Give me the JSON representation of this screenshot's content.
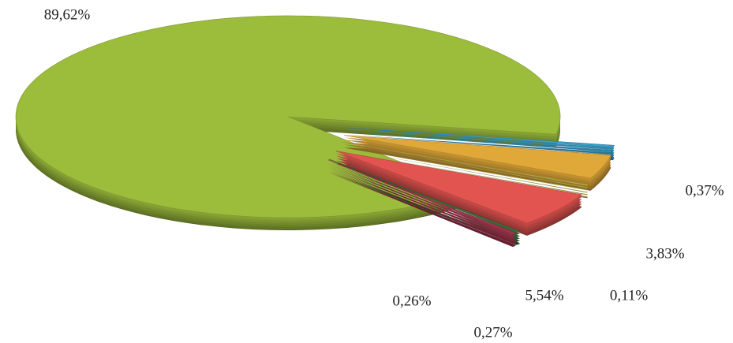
{
  "chart_data": {
    "type": "pie",
    "values": [
      89.62,
      0.37,
      3.83,
      0.11,
      5.54,
      0.27,
      0.26
    ],
    "value_labels": [
      "89,62%",
      "0,37%",
      "3,83%",
      "0,11%",
      "5,54%",
      "0,27%",
      "0,26%"
    ],
    "colors": [
      "#9cbc3c",
      "#3a9fc8",
      "#e0a838",
      "#c9c455",
      "#e25450",
      "#3e6a3c",
      "#a8334f"
    ]
  }
}
